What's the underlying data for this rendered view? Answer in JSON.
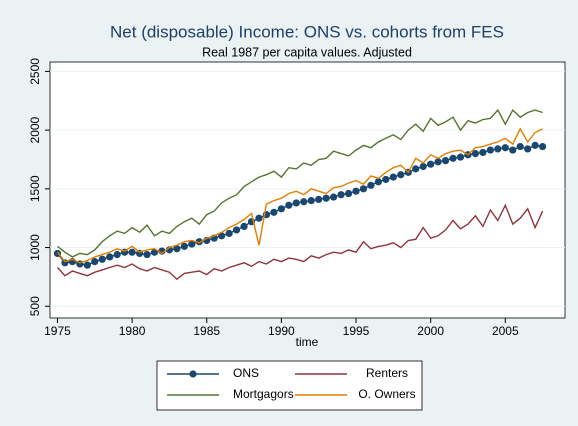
{
  "chart_data": {
    "type": "line",
    "title": "Net (disposable) Income: ONS vs. cohorts from FES",
    "subtitle": "Real 1987 per capita values. Adjusted",
    "x_label": "time",
    "x": [
      1975,
      1975.5,
      1976,
      1976.5,
      1977,
      1977.5,
      1978,
      1978.5,
      1979,
      1979.5,
      1980,
      1980.5,
      1981,
      1981.5,
      1982,
      1982.5,
      1983,
      1983.5,
      1984,
      1984.5,
      1985,
      1985.5,
      1986,
      1986.5,
      1987,
      1987.5,
      1988,
      1988.5,
      1989,
      1989.5,
      1990,
      1990.5,
      1991,
      1991.5,
      1992,
      1992.5,
      1993,
      1993.5,
      1994,
      1994.5,
      1995,
      1995.5,
      1996,
      1996.5,
      1997,
      1997.5,
      1998,
      1998.5,
      1999,
      1999.5,
      2000,
      2000.5,
      2001,
      2001.5,
      2002,
      2002.5,
      2003,
      2003.5,
      2004,
      2004.5,
      2005,
      2005.5,
      2006,
      2006.5,
      2007,
      2007.5
    ],
    "series": [
      {
        "name": "ONS",
        "color": "#1a476f",
        "marker": true,
        "values": [
          950,
          870,
          880,
          860,
          850,
          880,
          900,
          920,
          940,
          960,
          960,
          950,
          940,
          960,
          970,
          980,
          990,
          1010,
          1030,
          1050,
          1060,
          1080,
          1100,
          1120,
          1150,
          1180,
          1220,
          1250,
          1280,
          1300,
          1330,
          1360,
          1380,
          1390,
          1400,
          1410,
          1420,
          1430,
          1450,
          1460,
          1480,
          1500,
          1530,
          1560,
          1580,
          1600,
          1620,
          1640,
          1670,
          1690,
          1710,
          1730,
          1740,
          1760,
          1770,
          1790,
          1800,
          1810,
          1830,
          1840,
          1850,
          1830,
          1860,
          1840,
          1870,
          1860
        ]
      },
      {
        "name": "Renters",
        "color": "#90353b",
        "marker": false,
        "values": [
          830,
          760,
          800,
          780,
          760,
          790,
          810,
          830,
          850,
          830,
          860,
          820,
          800,
          830,
          810,
          790,
          730,
          780,
          790,
          800,
          770,
          820,
          800,
          830,
          850,
          870,
          840,
          880,
          860,
          900,
          880,
          910,
          900,
          880,
          930,
          910,
          940,
          960,
          950,
          980,
          960,
          1050,
          990,
          1010,
          1020,
          1040,
          1000,
          1060,
          1070,
          1170,
          1080,
          1100,
          1150,
          1230,
          1160,
          1200,
          1270,
          1180,
          1320,
          1230,
          1360,
          1200,
          1250,
          1330,
          1170,
          1310
        ]
      },
      {
        "name": "Mortgagors",
        "color": "#55752f",
        "marker": false,
        "values": [
          1010,
          960,
          920,
          950,
          940,
          980,
          1050,
          1100,
          1140,
          1120,
          1170,
          1130,
          1190,
          1100,
          1140,
          1120,
          1180,
          1220,
          1250,
          1200,
          1280,
          1310,
          1380,
          1420,
          1450,
          1520,
          1560,
          1600,
          1620,
          1650,
          1600,
          1680,
          1670,
          1720,
          1700,
          1750,
          1760,
          1820,
          1800,
          1780,
          1830,
          1870,
          1850,
          1900,
          1930,
          1960,
          1920,
          2000,
          2050,
          1990,
          2100,
          2040,
          2070,
          2110,
          2000,
          2080,
          2060,
          2090,
          2100,
          2170,
          2050,
          2170,
          2110,
          2150,
          2170,
          2150
        ]
      },
      {
        "name": "O. Owners",
        "color": "#e37e00",
        "marker": false,
        "values": [
          960,
          880,
          900,
          870,
          890,
          920,
          940,
          960,
          990,
          970,
          1010,
          960,
          980,
          990,
          950,
          1000,
          1020,
          1050,
          1060,
          1040,
          1080,
          1100,
          1130,
          1170,
          1200,
          1240,
          1290,
          1020,
          1370,
          1400,
          1420,
          1460,
          1480,
          1450,
          1500,
          1480,
          1460,
          1510,
          1520,
          1550,
          1570,
          1540,
          1610,
          1590,
          1640,
          1680,
          1700,
          1640,
          1760,
          1720,
          1790,
          1760,
          1800,
          1820,
          1830,
          1790,
          1850,
          1860,
          1880,
          1900,
          1930,
          1880,
          2010,
          1900,
          1980,
          2010
        ]
      }
    ],
    "xlim": [
      1974.5,
      2009
    ],
    "ylim": [
      400,
      2580
    ],
    "xticks": [
      1975,
      1980,
      1985,
      1990,
      1995,
      2000,
      2005
    ],
    "yticks": [
      500,
      1000,
      1500,
      2000,
      2500
    ],
    "grid": true,
    "legend": "bottom"
  }
}
